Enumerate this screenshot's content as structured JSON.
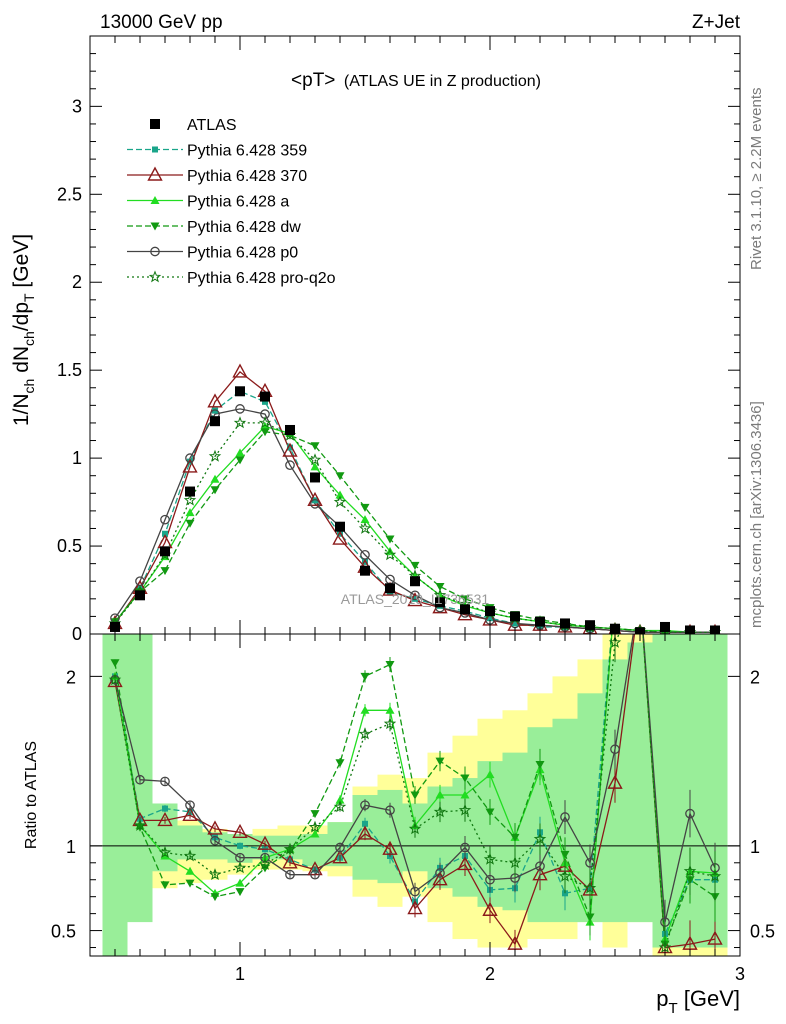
{
  "header": {
    "left": "13000 GeV pp",
    "right": "Z+Jet"
  },
  "side_labels": {
    "rivet": "Rivet 3.1.10, ≥ 2.2M events",
    "mcplots": "mcplots.cern.ch [arXiv:1306.3436]"
  },
  "watermark": "ATLAS_2019_I1736531",
  "colors": {
    "atlas": "#000000",
    "p359": "#1aa58a",
    "p370": "#8b1a1a",
    "pa": "#22dd22",
    "pdw": "#119911",
    "pp0": "#444444",
    "pq2o": "#117711",
    "band_yellow": "#ffff99",
    "band_green": "#99ee99"
  },
  "chart_data": [
    {
      "type": "line",
      "title_main": "<pT>",
      "title_sub": "(ATLAS UE in Z production)",
      "ylabel_base": "1/N",
      "ylabel_sub1": "ch",
      "ylabel_mid": " dN",
      "ylabel_sub2": "ch",
      "ylabel_mid2": "/dp",
      "ylabel_sub3": "T",
      "ylabel_unit": " [GeV]",
      "xlim": [
        0.4,
        3.0
      ],
      "ylim": [
        0,
        3.4
      ],
      "yticks": [
        "0",
        "0.5",
        "1",
        "1.5",
        "2",
        "2.5",
        "3"
      ],
      "x": [
        0.5,
        0.6,
        0.7,
        0.8,
        0.9,
        1.0,
        1.1,
        1.2,
        1.3,
        1.4,
        1.5,
        1.6,
        1.7,
        1.8,
        1.9,
        2.0,
        2.1,
        2.2,
        2.3,
        2.4,
        2.5,
        2.6,
        2.7,
        2.8,
        2.9
      ],
      "atlas": [
        0.04,
        0.22,
        0.47,
        0.81,
        1.21,
        1.38,
        1.35,
        1.16,
        0.89,
        0.61,
        0.36,
        0.26,
        0.3,
        0.18,
        0.14,
        0.13,
        0.1,
        0.07,
        0.06,
        0.05,
        0.03,
        0.01,
        0.04,
        0.02,
        0.02
      ],
      "series": [
        {
          "key": "p359",
          "name": "Pythia 6.428 359",
          "marker": "square-small",
          "dash": "6,3",
          "values": [
            0.06,
            0.26,
            0.57,
            0.98,
            1.27,
            1.38,
            1.32,
            1.06,
            0.76,
            0.57,
            0.41,
            0.24,
            0.2,
            0.16,
            0.13,
            0.09,
            0.06,
            0.04,
            0.04,
            0.03,
            0.02,
            0.01,
            0.01,
            0.01,
            0.01
          ]
        },
        {
          "key": "p370",
          "name": "Pythia 6.428 370",
          "marker": "triangle-open",
          "dash": "",
          "values": [
            0.06,
            0.26,
            0.52,
            0.95,
            1.32,
            1.49,
            1.38,
            1.04,
            0.76,
            0.54,
            0.38,
            0.25,
            0.19,
            0.15,
            0.11,
            0.08,
            0.05,
            0.05,
            0.04,
            0.03,
            0.02,
            0.01,
            0.01,
            0.01,
            0.01
          ]
        },
        {
          "key": "pa",
          "name": "Pythia 6.428 a",
          "marker": "triangle-up",
          "dash": "",
          "values": [
            0.07,
            0.24,
            0.44,
            0.69,
            0.88,
            1.03,
            1.18,
            1.14,
            0.95,
            0.79,
            0.65,
            0.47,
            0.33,
            0.22,
            0.16,
            0.12,
            0.09,
            0.07,
            0.05,
            0.04,
            0.03,
            0.02,
            0.02,
            0.01,
            0.01
          ]
        },
        {
          "key": "pdw",
          "name": "Pythia 6.428 dw",
          "marker": "triangle-down",
          "dash": "6,3",
          "values": [
            0.07,
            0.24,
            0.36,
            0.63,
            0.82,
            0.99,
            1.15,
            1.13,
            1.07,
            0.9,
            0.72,
            0.54,
            0.39,
            0.27,
            0.2,
            0.15,
            0.11,
            0.08,
            0.06,
            0.04,
            0.03,
            0.02,
            0.01,
            0.01,
            0.01
          ]
        },
        {
          "key": "pp0",
          "name": "Pythia 6.428 p0",
          "marker": "circle-open",
          "dash": "",
          "values": [
            0.09,
            0.3,
            0.65,
            1.0,
            1.25,
            1.28,
            1.25,
            0.96,
            0.74,
            0.61,
            0.45,
            0.31,
            0.22,
            0.15,
            0.12,
            0.08,
            0.06,
            0.05,
            0.04,
            0.03,
            0.02,
            0.01,
            0.01,
            0.01,
            0.01
          ]
        },
        {
          "key": "pq2o",
          "name": "Pythia 6.428 pro-q2o",
          "marker": "star",
          "dash": "2,3",
          "values": [
            0.06,
            0.24,
            0.45,
            0.76,
            1.01,
            1.2,
            1.2,
            1.13,
            0.99,
            0.75,
            0.6,
            0.45,
            0.33,
            0.22,
            0.17,
            0.12,
            0.09,
            0.07,
            0.05,
            0.04,
            0.03,
            0.02,
            0.01,
            0.01,
            0.01
          ]
        }
      ]
    },
    {
      "type": "line",
      "ylabel": "Ratio to ATLAS",
      "xlabel_base": "p",
      "xlabel_sub": "T",
      "xlabel_unit": " [GeV]",
      "xticks": [
        "1",
        "2",
        "3"
      ],
      "yticks": [
        "0.5",
        "1",
        "2"
      ],
      "ylim": [
        0.35,
        2.25
      ],
      "x": [
        0.5,
        0.6,
        0.7,
        0.8,
        0.9,
        1.0,
        1.1,
        1.2,
        1.3,
        1.4,
        1.5,
        1.6,
        1.7,
        1.8,
        1.9,
        2.0,
        2.1,
        2.2,
        2.3,
        2.4,
        2.5,
        2.6,
        2.7,
        2.8,
        2.9
      ],
      "band_yellow": [
        [
          0.4,
          2.25
        ],
        [
          0.6,
          2.25
        ],
        [
          0.75,
          1.22
        ],
        [
          0.78,
          1.15
        ],
        [
          0.8,
          1.1
        ],
        [
          0.83,
          1.07
        ],
        [
          0.86,
          1.1
        ],
        [
          0.86,
          1.12
        ],
        [
          0.85,
          1.12
        ],
        [
          0.82,
          1.14
        ],
        [
          0.7,
          1.35
        ],
        [
          0.64,
          1.42
        ],
        [
          0.7,
          1.4
        ],
        [
          0.55,
          1.55
        ],
        [
          0.45,
          1.65
        ],
        [
          0.4,
          1.75
        ],
        [
          0.4,
          1.8
        ],
        [
          0.45,
          1.9
        ],
        [
          0.45,
          2.0
        ],
        [
          0.55,
          2.1
        ],
        [
          0.4,
          2.25
        ],
        [
          0.55,
          2.25
        ],
        [
          0.35,
          2.25
        ],
        [
          0.35,
          2.25
        ],
        [
          0.35,
          2.25
        ]
      ],
      "band_green": [
        [
          0.35,
          2.25
        ],
        [
          0.55,
          2.25
        ],
        [
          0.85,
          1.25
        ],
        [
          0.92,
          1.12
        ],
        [
          0.92,
          1.08
        ],
        [
          0.9,
          1.07
        ],
        [
          0.92,
          1.06
        ],
        [
          0.92,
          1.06
        ],
        [
          0.88,
          1.07
        ],
        [
          0.88,
          1.14
        ],
        [
          0.8,
          1.3
        ],
        [
          0.78,
          1.33
        ],
        [
          0.85,
          1.25
        ],
        [
          0.75,
          1.35
        ],
        [
          0.7,
          1.4
        ],
        [
          0.64,
          1.5
        ],
        [
          0.62,
          1.55
        ],
        [
          0.55,
          1.7
        ],
        [
          0.55,
          1.75
        ],
        [
          0.55,
          1.9
        ],
        [
          0.55,
          2.1
        ],
        [
          0.55,
          2.2
        ],
        [
          0.4,
          2.25
        ],
        [
          0.4,
          2.25
        ],
        [
          0.4,
          2.25
        ]
      ],
      "series": [
        {
          "key": "p359",
          "values": [
            2.0,
            1.16,
            1.22,
            1.2,
            1.05,
            1.0,
            0.98,
            0.92,
            0.86,
            0.93,
            1.13,
            0.94,
            0.67,
            0.87,
            0.94,
            0.74,
            0.75,
            1.08,
            0.72,
            0.75,
            2.5,
            2.5,
            0.48,
            0.8,
            0.8
          ]
        },
        {
          "key": "p370",
          "values": [
            1.97,
            1.15,
            1.15,
            1.18,
            1.1,
            1.08,
            1.01,
            0.9,
            0.86,
            0.93,
            1.07,
            0.98,
            0.63,
            0.8,
            0.89,
            0.62,
            0.42,
            0.83,
            0.88,
            0.74,
            1.37,
            2.5,
            0.4,
            0.42,
            0.45
          ]
        },
        {
          "key": "pa",
          "values": [
            2.0,
            1.12,
            0.94,
            0.85,
            0.72,
            0.78,
            0.93,
            0.98,
            1.07,
            1.27,
            1.8,
            1.8,
            1.12,
            1.3,
            1.3,
            1.42,
            1.05,
            1.45,
            0.9,
            0.55,
            2.5,
            2.5,
            0.45,
            0.85,
            0.84
          ]
        },
        {
          "key": "pdw",
          "values": [
            2.08,
            1.11,
            0.77,
            0.78,
            0.7,
            0.73,
            0.87,
            0.97,
            1.19,
            1.49,
            2.0,
            2.07,
            1.3,
            1.5,
            1.4,
            1.2,
            1.05,
            1.48,
            0.95,
            0.58,
            2.5,
            2.5,
            0.42,
            0.8,
            0.7
          ]
        },
        {
          "key": "pp0",
          "values": [
            1.98,
            1.39,
            1.38,
            1.24,
            1.03,
            0.93,
            0.93,
            0.83,
            0.83,
            0.99,
            1.24,
            1.21,
            0.73,
            0.84,
            0.99,
            0.8,
            0.81,
            0.88,
            1.17,
            0.9,
            1.57,
            2.5,
            0.55,
            1.19,
            0.87
          ]
        },
        {
          "key": "pq2o",
          "values": [
            1.98,
            1.12,
            0.96,
            0.94,
            0.83,
            0.87,
            0.89,
            0.98,
            1.11,
            1.23,
            1.66,
            1.72,
            1.1,
            1.2,
            1.21,
            0.92,
            0.9,
            1.04,
            0.82,
            0.75,
            2.2,
            2.5,
            0.4,
            0.85,
            0.82
          ]
        }
      ]
    }
  ]
}
